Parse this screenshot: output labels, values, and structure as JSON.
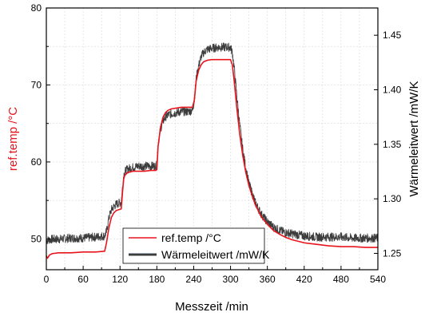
{
  "chart_data": {
    "type": "line",
    "xlabel": "Messzeit /min",
    "ylabel_left": "ref.temp /°C",
    "ylabel_right": "Wärmeleitwert /mW/K",
    "xlim": [
      0,
      540
    ],
    "ylim_left": [
      46,
      80
    ],
    "ylim_right": [
      1.235,
      1.475
    ],
    "x_ticks": [
      "0",
      "60",
      "120",
      "180",
      "240",
      "300",
      "360",
      "420",
      "480",
      "540"
    ],
    "y_left_ticks": [
      "50",
      "60",
      "70",
      "80"
    ],
    "y_right_ticks": [
      "1.25",
      "1.30",
      "1.35",
      "1.40",
      "1.45"
    ],
    "grid": true,
    "legend_position": "bottom-center",
    "series": [
      {
        "name": "ref.temp /°C",
        "axis": "left",
        "color": "#e8141c",
        "x": [
          0,
          2,
          5,
          10,
          20,
          40,
          60,
          80,
          95,
          98,
          102,
          106,
          110,
          114,
          118,
          122,
          124,
          126,
          128,
          132,
          136,
          142,
          150,
          160,
          170,
          178,
          180,
          182,
          186,
          190,
          194,
          198,
          204,
          212,
          220,
          230,
          238,
          241,
          244,
          248,
          252,
          256,
          262,
          270,
          280,
          290,
          300,
          303,
          306,
          310,
          315,
          320,
          325,
          330,
          340,
          350,
          360,
          370,
          380,
          390,
          400,
          420,
          440,
          460,
          480,
          500,
          520,
          540
        ],
        "y": [
          47.8,
          47.5,
          47.9,
          48.1,
          48.2,
          48.2,
          48.3,
          48.3,
          48.4,
          49.5,
          51.5,
          52.8,
          53.4,
          53.7,
          53.8,
          53.9,
          56.0,
          57.8,
          58.3,
          58.6,
          58.7,
          58.8,
          58.8,
          58.8,
          58.9,
          58.9,
          59.0,
          62.0,
          64.5,
          65.8,
          66.4,
          66.7,
          66.9,
          67.0,
          67.1,
          67.1,
          67.1,
          68.0,
          70.5,
          71.9,
          72.6,
          73.0,
          73.2,
          73.3,
          73.3,
          73.3,
          73.3,
          72.6,
          70.5,
          67.2,
          63.6,
          60.8,
          58.6,
          56.9,
          54.5,
          52.9,
          51.9,
          51.1,
          50.6,
          50.2,
          49.9,
          49.5,
          49.3,
          49.1,
          49.0,
          49.0,
          48.9,
          48.9
        ]
      },
      {
        "name": "Wärmeleitwert /mW/K",
        "axis": "right",
        "color": "#3c3c3c",
        "x": [
          0,
          10,
          20,
          40,
          60,
          80,
          95,
          98,
          102,
          106,
          110,
          114,
          118,
          122,
          124,
          126,
          128,
          132,
          136,
          142,
          150,
          160,
          170,
          178,
          180,
          182,
          186,
          190,
          194,
          198,
          204,
          212,
          220,
          230,
          238,
          241,
          244,
          248,
          252,
          256,
          262,
          270,
          280,
          290,
          300,
          303,
          306,
          310,
          315,
          320,
          325,
          330,
          340,
          350,
          360,
          370,
          380,
          390,
          400,
          420,
          440,
          460,
          480,
          500,
          520,
          540
        ],
        "y": [
          1.262,
          1.263,
          1.263,
          1.264,
          1.264,
          1.265,
          1.266,
          1.27,
          1.283,
          1.29,
          1.293,
          1.295,
          1.296,
          1.297,
          1.31,
          1.322,
          1.325,
          1.327,
          1.328,
          1.329,
          1.33,
          1.33,
          1.33,
          1.33,
          1.331,
          1.35,
          1.364,
          1.371,
          1.375,
          1.377,
          1.378,
          1.379,
          1.38,
          1.38,
          1.381,
          1.39,
          1.41,
          1.422,
          1.43,
          1.434,
          1.437,
          1.438,
          1.439,
          1.439,
          1.439,
          1.434,
          1.42,
          1.396,
          1.368,
          1.345,
          1.328,
          1.314,
          1.297,
          1.286,
          1.279,
          1.274,
          1.271,
          1.269,
          1.268,
          1.266,
          1.265,
          1.265,
          1.265,
          1.264,
          1.264,
          1.264
        ],
        "noise": 0.004
      }
    ]
  }
}
